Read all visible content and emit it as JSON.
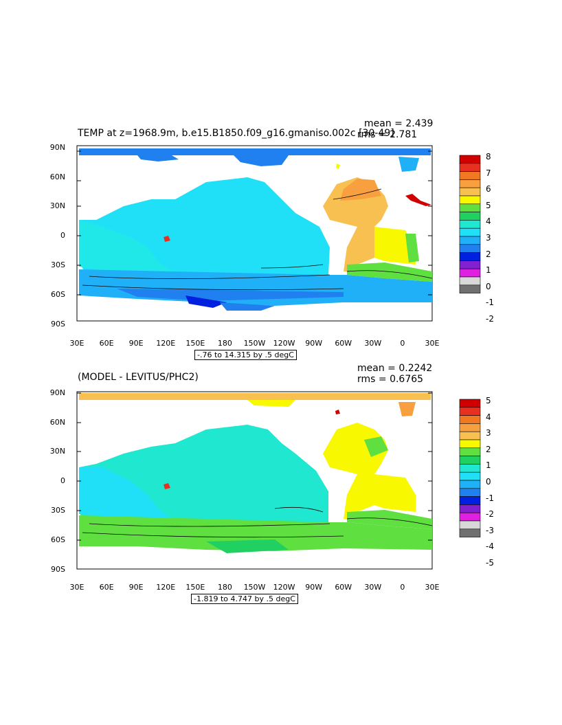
{
  "panels": [
    {
      "id": "top",
      "title": "TEMP at z=1968.9m, b.e15.B1850.f09_g16.gmaniso.002c  [30-49]",
      "mean": "mean = 2.439",
      "rms": "rms = 2.781",
      "range": "-.76 to 14.315 by .5 degC",
      "colorbar_labels": [
        "8",
        "7",
        "6",
        "5",
        "4",
        "3",
        "2",
        "1",
        "0",
        "-1",
        "-2"
      ]
    },
    {
      "id": "bottom",
      "title": "(MODEL - LEVITUS/PHC2)",
      "mean": "mean = 0.2242",
      "rms": "rms = 0.6765",
      "range": "-1.819 to 4.747 by .5 degC",
      "colorbar_labels": [
        "5",
        "4",
        "3",
        "2",
        "1",
        "0",
        "-1",
        "-2",
        "-3",
        "-4",
        "-5"
      ]
    }
  ],
  "axes": {
    "lat_labels": [
      "90N",
      "60N",
      "30N",
      "0",
      "30S",
      "60S",
      "90S"
    ],
    "lon_labels": [
      "30E",
      "60E",
      "90E",
      "120E",
      "150E",
      "180",
      "150W",
      "120W",
      "90W",
      "60W",
      "30W",
      "0",
      "30E"
    ]
  },
  "colorbar_colors": [
    "#d00000",
    "#e83020",
    "#f07820",
    "#f8a040",
    "#f8c050",
    "#f8f800",
    "#60e040",
    "#20d060",
    "#20e8d0",
    "#20e0f8",
    "#20b0f8",
    "#2080f0",
    "#0020e0",
    "#8020d0",
    "#e020e0",
    "#d8d8d8",
    "#707070"
  ]
}
